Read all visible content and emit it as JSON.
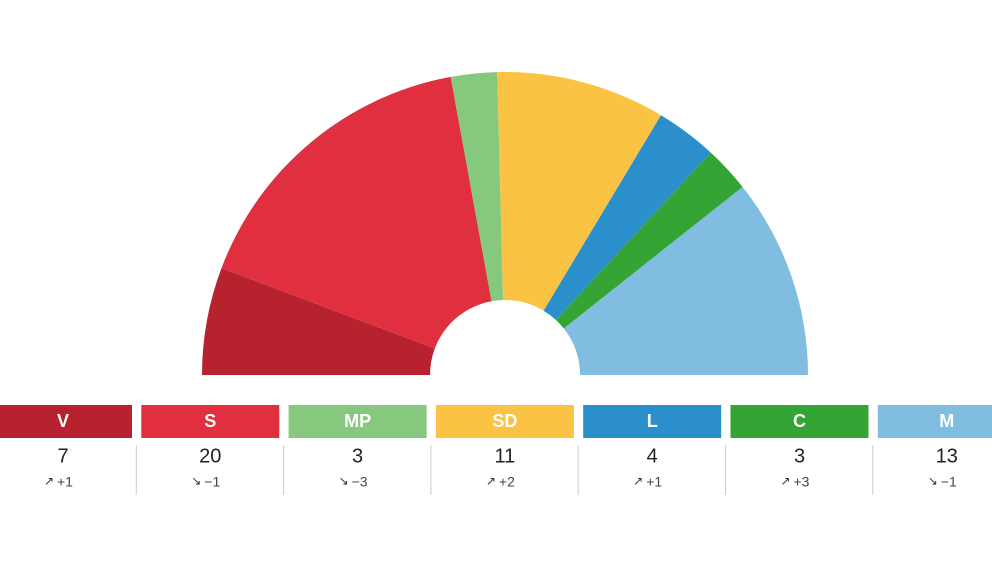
{
  "chart_data": {
    "type": "half-donut",
    "categories": [
      "V",
      "S",
      "MP",
      "SD",
      "L",
      "C",
      "M"
    ],
    "values": [
      7,
      20,
      3,
      11,
      4,
      3,
      13
    ],
    "colors": [
      "#b8212e",
      "#e0303f",
      "#86c87e",
      "#fbc344",
      "#2a8fca",
      "#34a535",
      "#80bde0"
    ],
    "changes": {
      "values": [
        1,
        -1,
        -3,
        2,
        1,
        3,
        -1
      ],
      "value_labels": [
        "+1",
        "−1",
        "−3",
        "+2",
        "+1",
        "+3",
        "−1"
      ]
    }
  }
}
